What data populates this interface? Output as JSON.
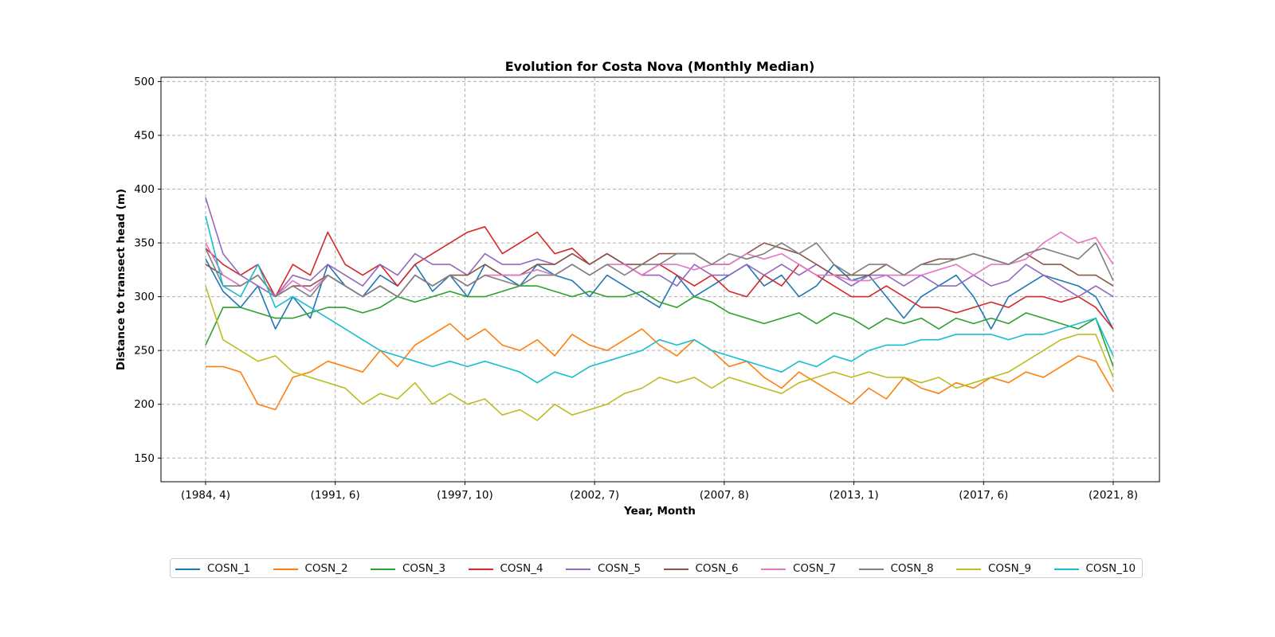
{
  "chart_data": {
    "type": "line",
    "title": "Evolution for Costa Nova (Monthly Median)",
    "xlabel": "Year, Month",
    "ylabel": "Distance to transect head (m)",
    "x_tick_labels": [
      "(1984, 4)",
      "(1991, 6)",
      "(1997, 10)",
      "(2002, 7)",
      "(2007, 8)",
      "(2013, 1)",
      "(2017, 6)",
      "(2021, 8)"
    ],
    "y_ticks": [
      150,
      200,
      250,
      300,
      350,
      400,
      450,
      500
    ],
    "ylim": [
      128,
      504
    ],
    "grid": true,
    "legend_position": "below",
    "colors": [
      "#1f77b4",
      "#ff7f0e",
      "#2ca02c",
      "#d62728",
      "#9467bd",
      "#8c564b",
      "#e377c2",
      "#7f7f7f",
      "#bcbd22",
      "#17becf"
    ],
    "series": [
      {
        "name": "COSN_1",
        "values": [
          335,
          305,
          290,
          310,
          270,
          300,
          280,
          330,
          310,
          300,
          320,
          310,
          330,
          305,
          320,
          300,
          330,
          320,
          310,
          330,
          320,
          315,
          300,
          320,
          310,
          300,
          290,
          320,
          300,
          310,
          320,
          330,
          310,
          320,
          300,
          310,
          330,
          315,
          320,
          300,
          280,
          300,
          310,
          320,
          300,
          270,
          300,
          310,
          320,
          315,
          310,
          300,
          270
        ]
      },
      {
        "name": "COSN_2",
        "values": [
          235,
          235,
          230,
          200,
          195,
          225,
          230,
          240,
          235,
          230,
          250,
          235,
          255,
          265,
          275,
          260,
          270,
          255,
          250,
          260,
          245,
          265,
          255,
          250,
          260,
          270,
          255,
          245,
          260,
          250,
          235,
          240,
          225,
          215,
          230,
          220,
          210,
          200,
          215,
          205,
          225,
          215,
          210,
          220,
          215,
          225,
          220,
          230,
          225,
          235,
          245,
          240,
          212
        ]
      },
      {
        "name": "COSN_3",
        "values": [
          255,
          290,
          290,
          285,
          280,
          280,
          285,
          290,
          290,
          285,
          290,
          300,
          295,
          300,
          305,
          300,
          300,
          305,
          310,
          310,
          305,
          300,
          305,
          300,
          300,
          305,
          295,
          290,
          300,
          295,
          285,
          280,
          275,
          280,
          285,
          275,
          285,
          280,
          270,
          280,
          275,
          280,
          270,
          280,
          275,
          280,
          275,
          285,
          280,
          275,
          270,
          280,
          235
        ]
      },
      {
        "name": "COSN_4",
        "values": [
          345,
          330,
          320,
          330,
          300,
          330,
          320,
          360,
          330,
          320,
          330,
          310,
          330,
          340,
          350,
          360,
          365,
          340,
          350,
          360,
          340,
          345,
          330,
          340,
          330,
          320,
          330,
          320,
          310,
          320,
          305,
          300,
          320,
          310,
          330,
          320,
          310,
          300,
          300,
          310,
          300,
          290,
          290,
          285,
          290,
          295,
          290,
          300,
          300,
          295,
          300,
          290,
          270
        ]
      },
      {
        "name": "COSN_5",
        "values": [
          392,
          340,
          320,
          310,
          300,
          320,
          315,
          330,
          320,
          310,
          330,
          320,
          340,
          330,
          330,
          320,
          340,
          330,
          330,
          335,
          330,
          340,
          330,
          340,
          330,
          320,
          320,
          310,
          330,
          320,
          320,
          330,
          320,
          330,
          320,
          330,
          320,
          310,
          320,
          320,
          310,
          320,
          310,
          310,
          320,
          310,
          315,
          330,
          320,
          310,
          300,
          310,
          300
        ]
      },
      {
        "name": "COSN_6",
        "values": [
          330,
          320,
          310,
          320,
          300,
          310,
          310,
          320,
          310,
          300,
          310,
          300,
          320,
          310,
          320,
          320,
          330,
          320,
          320,
          330,
          330,
          340,
          330,
          340,
          330,
          330,
          340,
          340,
          340,
          330,
          330,
          340,
          350,
          345,
          340,
          330,
          320,
          320,
          320,
          330,
          320,
          330,
          335,
          335,
          340,
          335,
          330,
          340,
          330,
          330,
          320,
          320,
          310
        ]
      },
      {
        "name": "COSN_7",
        "values": [
          350,
          320,
          310,
          320,
          300,
          315,
          305,
          320,
          310,
          300,
          310,
          300,
          320,
          310,
          320,
          310,
          320,
          320,
          320,
          325,
          320,
          330,
          320,
          330,
          330,
          320,
          330,
          330,
          325,
          330,
          330,
          340,
          335,
          340,
          330,
          320,
          320,
          315,
          315,
          320,
          320,
          320,
          325,
          330,
          320,
          330,
          330,
          335,
          350,
          360,
          350,
          355,
          330
        ]
      },
      {
        "name": "COSN_8",
        "values": [
          345,
          310,
          310,
          320,
          300,
          310,
          300,
          320,
          310,
          300,
          310,
          300,
          320,
          310,
          320,
          310,
          320,
          315,
          310,
          320,
          320,
          330,
          320,
          330,
          320,
          330,
          330,
          340,
          340,
          330,
          340,
          335,
          340,
          350,
          340,
          350,
          330,
          320,
          330,
          330,
          320,
          330,
          330,
          335,
          340,
          335,
          330,
          340,
          345,
          340,
          335,
          350,
          315
        ]
      },
      {
        "name": "COSN_9",
        "values": [
          310,
          260,
          250,
          240,
          245,
          230,
          225,
          220,
          215,
          200,
          210,
          205,
          220,
          200,
          210,
          200,
          205,
          190,
          195,
          185,
          200,
          190,
          195,
          200,
          210,
          215,
          225,
          220,
          225,
          215,
          225,
          220,
          215,
          210,
          220,
          225,
          230,
          225,
          230,
          225,
          225,
          220,
          225,
          215,
          220,
          225,
          230,
          240,
          250,
          260,
          265,
          265,
          225
        ]
      },
      {
        "name": "COSN_10",
        "values": [
          375,
          310,
          300,
          330,
          290,
          300,
          290,
          280,
          270,
          260,
          250,
          245,
          240,
          235,
          240,
          235,
          240,
          235,
          230,
          220,
          230,
          225,
          235,
          240,
          245,
          250,
          260,
          255,
          260,
          250,
          245,
          240,
          235,
          230,
          240,
          235,
          245,
          240,
          250,
          255,
          255,
          260,
          260,
          265,
          265,
          265,
          260,
          265,
          265,
          270,
          275,
          280,
          245
        ]
      }
    ]
  }
}
